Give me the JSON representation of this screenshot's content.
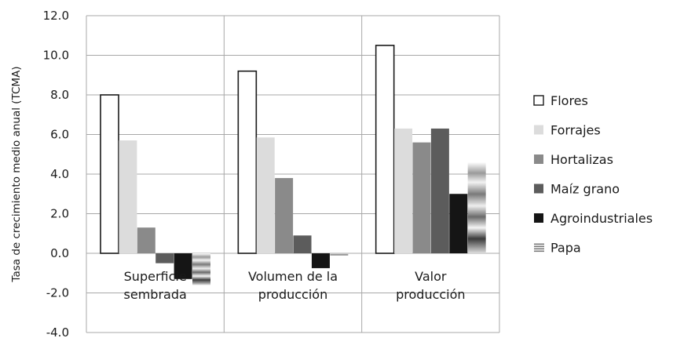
{
  "chart_data": {
    "type": "bar",
    "title": "",
    "xlabel": "",
    "ylabel": "Tasa de crecimiento medio anual (TCMA)",
    "ylim": [
      -4.0,
      12.0
    ],
    "yticks": [
      "12.0",
      "10.0",
      "8.0",
      "6.0",
      "4.0",
      "2.0",
      "0.0",
      "-2.0",
      "-4.0"
    ],
    "categories": [
      [
        "Superficie",
        "sembrada"
      ],
      [
        "Volumen de la",
        "producción"
      ],
      [
        "Valor",
        "producción"
      ]
    ],
    "series": [
      {
        "name": "Flores",
        "values": [
          8.0,
          9.2,
          10.5
        ],
        "color": "#ffffff"
      },
      {
        "name": "Forrajes",
        "values": [
          5.7,
          5.85,
          6.3
        ],
        "color": "#dcdcdc"
      },
      {
        "name": "Hortalizas",
        "values": [
          1.3,
          3.8,
          5.6
        ],
        "color": "#8a8a8a"
      },
      {
        "name": "Maíz grano",
        "values": [
          -0.5,
          0.9,
          6.3
        ],
        "color": "#5c5c5c"
      },
      {
        "name": "Agroindustriales",
        "values": [
          -1.3,
          -0.75,
          3.0
        ],
        "color": "#151515"
      },
      {
        "name": "Papa",
        "values": [
          -1.6,
          -0.12,
          4.6
        ],
        "color": "#b8b8b8"
      }
    ],
    "grid": true,
    "legend_position": "right"
  }
}
